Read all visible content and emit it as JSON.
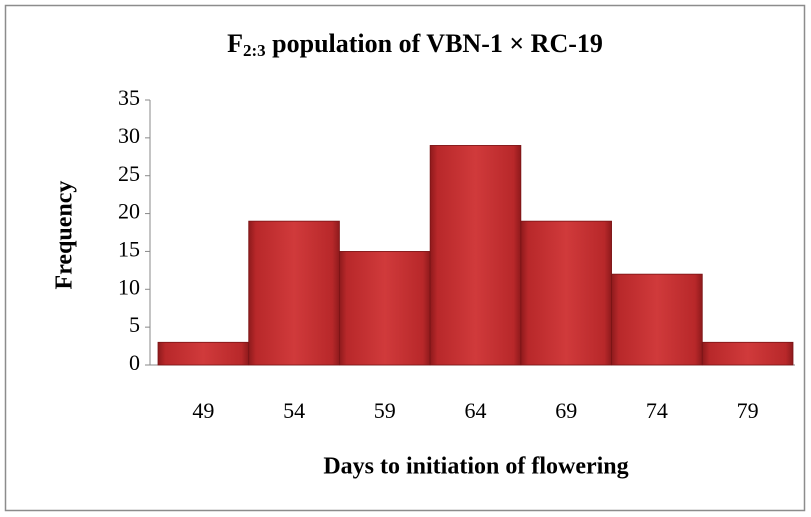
{
  "chart_data": {
    "type": "bar",
    "title": {
      "main": "F",
      "subscript": "2:3",
      "rest": " population of VBN-1 × RC-19"
    },
    "x_label": "Days to initiation of flowering",
    "y_label": "Frequency",
    "categories": [
      "49",
      "54",
      "59",
      "64",
      "69",
      "74",
      "79"
    ],
    "values": [
      3,
      19,
      15,
      29,
      19,
      12,
      3
    ],
    "color": "#c0282a",
    "ylim": [
      0,
      35
    ],
    "yticks": [
      0,
      5,
      10,
      15,
      20,
      25,
      30,
      35
    ],
    "grid": false
  }
}
